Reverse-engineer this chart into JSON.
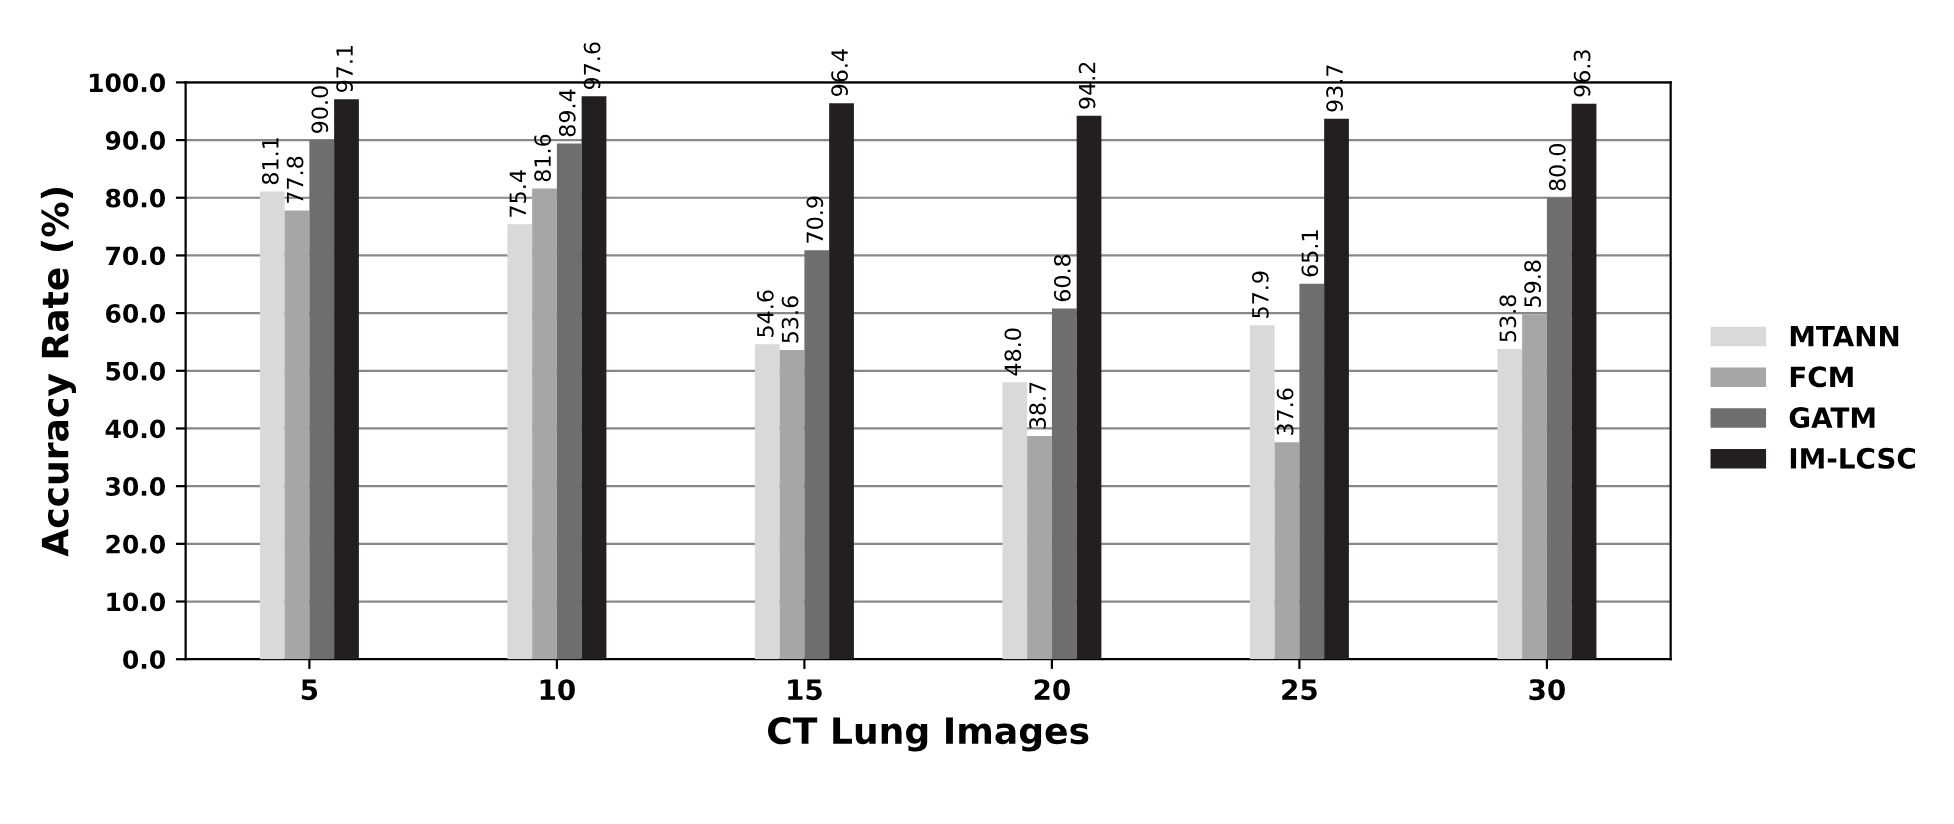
{
  "chart_data": {
    "type": "bar",
    "xlabel": "CT Lung Images",
    "ylabel": "Accuracy Rate (%)",
    "categories": [
      "5",
      "10",
      "15",
      "20",
      "25",
      "30"
    ],
    "series": [
      {
        "name": "MTANN",
        "color": "#d9d9d9",
        "values": [
          81.1,
          75.4,
          54.6,
          48.0,
          57.9,
          53.8
        ],
        "value_labels": [
          "81.1",
          "75.4",
          "54.6",
          "48.0",
          "57.9",
          "53.8"
        ]
      },
      {
        "name": "FCM",
        "color": "#a6a6a6",
        "values": [
          77.8,
          81.6,
          53.6,
          38.7,
          37.6,
          59.8
        ],
        "value_labels": [
          "77.8",
          "81.6",
          "53.6",
          "38.7",
          "37.6",
          "59.8"
        ]
      },
      {
        "name": "GATM",
        "color": "#6e6e6e",
        "values": [
          90.0,
          89.4,
          70.9,
          60.8,
          65.1,
          80.0
        ],
        "value_labels": [
          "90.0",
          "89.4",
          "70.9",
          "60.8",
          "65.1",
          "80.0"
        ]
      },
      {
        "name": "IM-LCSC",
        "color": "#231f20",
        "values": [
          97.1,
          97.6,
          96.4,
          94.2,
          93.7,
          96.3
        ],
        "value_labels": [
          "97.1",
          "97.6",
          "96.4",
          "94.2",
          "93.7",
          "96.3"
        ]
      }
    ],
    "ylim": [
      0,
      100
    ],
    "yticks": [
      {
        "value": 0,
        "label": "0.0"
      },
      {
        "value": 10,
        "label": "10.0"
      },
      {
        "value": 20,
        "label": "20.0"
      },
      {
        "value": 30,
        "label": "30.0"
      },
      {
        "value": 40,
        "label": "40.0"
      },
      {
        "value": 50,
        "label": "50.0"
      },
      {
        "value": 60,
        "label": "60.0"
      },
      {
        "value": 70,
        "label": "70.0"
      },
      {
        "value": 80,
        "label": "80.0"
      },
      {
        "value": 90,
        "label": "90.0"
      },
      {
        "value": 100,
        "label": "100.0"
      }
    ],
    "grid": "y",
    "legend": "right"
  }
}
